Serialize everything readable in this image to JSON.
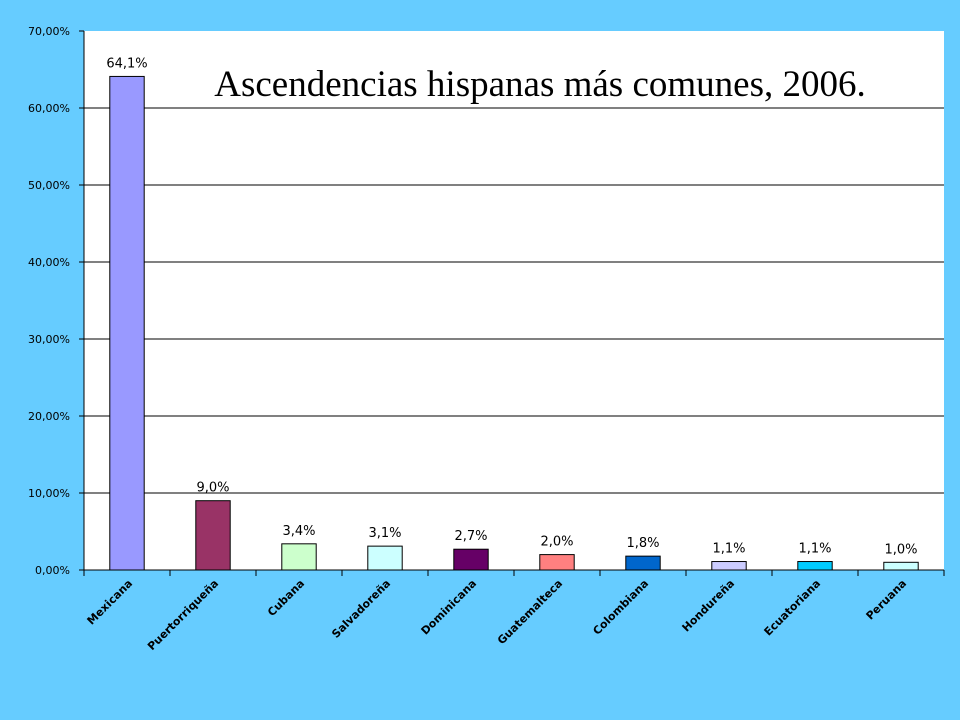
{
  "chart_data": {
    "type": "bar",
    "title": "Ascendencias hispanas más comunes, 2006.",
    "xlabel": "",
    "ylabel": "",
    "categories": [
      "Mexicana",
      "Puertorriqueña",
      "Cubana",
      "Salvadoreña",
      "Dominicana",
      "Guatemalteca",
      "Colombiana",
      "Hondureña",
      "Ecuatoriana",
      "Peruana"
    ],
    "values": [
      64.1,
      9.0,
      3.4,
      3.1,
      2.7,
      2.0,
      1.8,
      1.1,
      1.1,
      1.0
    ],
    "data_labels": [
      "64,1%",
      "9,0%",
      "3,4%",
      "3,1%",
      "2,7%",
      "2,0%",
      "1,8%",
      "1,1%",
      "1,1%",
      "1,0%"
    ],
    "bar_colors": [
      "#9999ff",
      "#993366",
      "#ccffcc",
      "#ccffff",
      "#660066",
      "#ff8080",
      "#0066cc",
      "#ccccff",
      "#00ccff",
      "#ccffff"
    ],
    "ylim": [
      0,
      70
    ],
    "yticks": [
      0,
      10,
      20,
      30,
      40,
      50,
      60,
      70
    ],
    "ytick_labels": [
      "0,00%",
      "10,00%",
      "20,00%",
      "30,00%",
      "40,00%",
      "50,00%",
      "60,00%",
      "70,00%"
    ],
    "grid": true,
    "legend": "none",
    "colors": {
      "background": "#66ccff",
      "plot_area": "#ffffff",
      "gridline": "#000000"
    }
  }
}
